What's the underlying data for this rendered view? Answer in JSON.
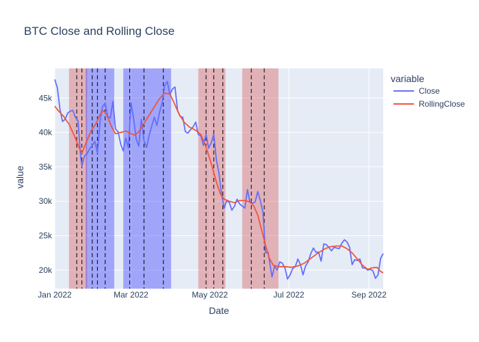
{
  "chart_data": {
    "type": "line",
    "title": "BTC Close and Rolling Close",
    "xlabel": "Date",
    "ylabel": "value",
    "legend_title": "variable",
    "legend_position": "top-right outside plot",
    "grid": true,
    "colors": {
      "plot_bg": "#e5ecf6",
      "grid": "#ffffff",
      "red_band": "#d62728",
      "blue_band": "#0000ff",
      "vline": "#000000"
    },
    "x_range": [
      "2022-01-01",
      "2022-09-12"
    ],
    "y_range": [
      17300,
      49300
    ],
    "x_ticks": [
      {
        "date": "2022-01-01",
        "label": "Jan 2022"
      },
      {
        "date": "2022-03-01",
        "label": "Mar 2022"
      },
      {
        "date": "2022-05-01",
        "label": "May 2022"
      },
      {
        "date": "2022-07-01",
        "label": "Jul 2022"
      },
      {
        "date": "2022-09-01",
        "label": "Sep 2022"
      }
    ],
    "y_ticks": [
      {
        "value": 20000,
        "label": "20k"
      },
      {
        "value": 25000,
        "label": "25k"
      },
      {
        "value": 30000,
        "label": "30k"
      },
      {
        "value": 35000,
        "label": "35k"
      },
      {
        "value": 40000,
        "label": "40k"
      },
      {
        "value": 45000,
        "label": "45k"
      }
    ],
    "bands": [
      {
        "start": "2022-01-12",
        "end": "2022-01-26",
        "color": "red"
      },
      {
        "start": "2022-01-25",
        "end": "2022-02-16",
        "color": "blue"
      },
      {
        "start": "2022-02-23",
        "end": "2022-04-01",
        "color": "blue"
      },
      {
        "start": "2022-04-22",
        "end": "2022-05-13",
        "color": "red"
      },
      {
        "start": "2022-05-26",
        "end": "2022-06-23",
        "color": "red"
      }
    ],
    "vlines": [
      "2022-01-18",
      "2022-01-22",
      "2022-01-30",
      "2022-02-03",
      "2022-02-09",
      "2022-02-28",
      "2022-03-11",
      "2022-03-26",
      "2022-04-28",
      "2022-05-04",
      "2022-05-11",
      "2022-06-02",
      "2022-06-12"
    ],
    "series": [
      {
        "name": "Close",
        "color": "#636efa",
        "points": [
          [
            "2022-01-01",
            47700
          ],
          [
            "2022-01-03",
            46500
          ],
          [
            "2022-01-05",
            43400
          ],
          [
            "2022-01-07",
            41600
          ],
          [
            "2022-01-09",
            41900
          ],
          [
            "2022-01-11",
            42800
          ],
          [
            "2022-01-13",
            43100
          ],
          [
            "2022-01-15",
            43200
          ],
          [
            "2022-01-17",
            42200
          ],
          [
            "2022-01-19",
            41700
          ],
          [
            "2022-01-21",
            36500
          ],
          [
            "2022-01-22",
            35100
          ],
          [
            "2022-01-24",
            36600
          ],
          [
            "2022-01-26",
            36900
          ],
          [
            "2022-01-28",
            37600
          ],
          [
            "2022-01-30",
            38100
          ],
          [
            "2022-02-01",
            38700
          ],
          [
            "2022-02-03",
            37000
          ],
          [
            "2022-02-05",
            41600
          ],
          [
            "2022-02-07",
            43800
          ],
          [
            "2022-02-09",
            44200
          ],
          [
            "2022-02-11",
            42300
          ],
          [
            "2022-02-13",
            42100
          ],
          [
            "2022-02-15",
            44500
          ],
          [
            "2022-02-17",
            40500
          ],
          [
            "2022-02-19",
            40100
          ],
          [
            "2022-02-21",
            38300
          ],
          [
            "2022-02-23",
            37300
          ],
          [
            "2022-02-25",
            39200
          ],
          [
            "2022-02-27",
            37700
          ],
          [
            "2022-03-01",
            44300
          ],
          [
            "2022-03-03",
            42000
          ],
          [
            "2022-03-05",
            39000
          ],
          [
            "2022-03-07",
            38000
          ],
          [
            "2022-03-09",
            41900
          ],
          [
            "2022-03-11",
            38800
          ],
          [
            "2022-03-13",
            37800
          ],
          [
            "2022-03-15",
            39600
          ],
          [
            "2022-03-17",
            40900
          ],
          [
            "2022-03-19",
            42200
          ],
          [
            "2022-03-21",
            41000
          ],
          [
            "2022-03-23",
            42900
          ],
          [
            "2022-03-25",
            44300
          ],
          [
            "2022-03-27",
            46800
          ],
          [
            "2022-03-29",
            47400
          ],
          [
            "2022-03-31",
            45500
          ],
          [
            "2022-04-02",
            46300
          ],
          [
            "2022-04-04",
            46600
          ],
          [
            "2022-04-06",
            43200
          ],
          [
            "2022-04-08",
            42300
          ],
          [
            "2022-04-10",
            42200
          ],
          [
            "2022-04-12",
            40100
          ],
          [
            "2022-04-14",
            39900
          ],
          [
            "2022-04-16",
            40400
          ],
          [
            "2022-04-18",
            40800
          ],
          [
            "2022-04-20",
            41500
          ],
          [
            "2022-04-22",
            39700
          ],
          [
            "2022-04-24",
            39500
          ],
          [
            "2022-04-26",
            38100
          ],
          [
            "2022-04-28",
            39700
          ],
          [
            "2022-04-30",
            37700
          ],
          [
            "2022-05-02",
            38500
          ],
          [
            "2022-05-04",
            39700
          ],
          [
            "2022-05-06",
            36000
          ],
          [
            "2022-05-08",
            34100
          ],
          [
            "2022-05-10",
            31000
          ],
          [
            "2022-05-12",
            29000
          ],
          [
            "2022-05-14",
            30100
          ],
          [
            "2022-05-16",
            29800
          ],
          [
            "2022-05-18",
            28700
          ],
          [
            "2022-05-20",
            29300
          ],
          [
            "2022-05-22",
            30300
          ],
          [
            "2022-05-24",
            29600
          ],
          [
            "2022-05-26",
            29300
          ],
          [
            "2022-05-28",
            29000
          ],
          [
            "2022-05-30",
            31700
          ],
          [
            "2022-06-01",
            29800
          ],
          [
            "2022-06-03",
            29700
          ],
          [
            "2022-06-05",
            29900
          ],
          [
            "2022-06-07",
            31400
          ],
          [
            "2022-06-09",
            30100
          ],
          [
            "2022-06-11",
            28400
          ],
          [
            "2022-06-13",
            22500
          ],
          [
            "2022-06-15",
            22600
          ],
          [
            "2022-06-18",
            19000
          ],
          [
            "2022-06-20",
            20600
          ],
          [
            "2022-06-22",
            20000
          ],
          [
            "2022-06-24",
            21200
          ],
          [
            "2022-06-26",
            21000
          ],
          [
            "2022-06-28",
            20300
          ],
          [
            "2022-06-30",
            18700
          ],
          [
            "2022-07-02",
            19300
          ],
          [
            "2022-07-04",
            20200
          ],
          [
            "2022-07-06",
            20500
          ],
          [
            "2022-07-08",
            21600
          ],
          [
            "2022-07-10",
            20800
          ],
          [
            "2022-07-12",
            19300
          ],
          [
            "2022-07-14",
            20600
          ],
          [
            "2022-07-16",
            21200
          ],
          [
            "2022-07-18",
            22400
          ],
          [
            "2022-07-20",
            23200
          ],
          [
            "2022-07-22",
            22600
          ],
          [
            "2022-07-24",
            22600
          ],
          [
            "2022-07-26",
            21300
          ],
          [
            "2022-07-28",
            23800
          ],
          [
            "2022-07-30",
            23700
          ],
          [
            "2022-08-01",
            23300
          ],
          [
            "2022-08-03",
            22800
          ],
          [
            "2022-08-05",
            23300
          ],
          [
            "2022-08-07",
            23200
          ],
          [
            "2022-08-09",
            23100
          ],
          [
            "2022-08-11",
            23900
          ],
          [
            "2022-08-13",
            24400
          ],
          [
            "2022-08-15",
            24100
          ],
          [
            "2022-08-17",
            23300
          ],
          [
            "2022-08-19",
            20800
          ],
          [
            "2022-08-21",
            21500
          ],
          [
            "2022-08-23",
            21400
          ],
          [
            "2022-08-25",
            21600
          ],
          [
            "2022-08-27",
            20300
          ],
          [
            "2022-08-29",
            20300
          ],
          [
            "2022-08-31",
            20000
          ],
          [
            "2022-09-02",
            20100
          ],
          [
            "2022-09-04",
            19900
          ],
          [
            "2022-09-06",
            18800
          ],
          [
            "2022-09-08",
            19300
          ],
          [
            "2022-09-10",
            21700
          ],
          [
            "2022-09-12",
            22400
          ]
        ]
      },
      {
        "name": "RollingClose",
        "color": "#ef553b",
        "points": [
          [
            "2022-01-01",
            43800
          ],
          [
            "2022-01-04",
            43100
          ],
          [
            "2022-01-08",
            42300
          ],
          [
            "2022-01-12",
            41200
          ],
          [
            "2022-01-16",
            39600
          ],
          [
            "2022-01-20",
            37700
          ],
          [
            "2022-01-22",
            37000
          ],
          [
            "2022-01-25",
            38400
          ],
          [
            "2022-01-29",
            40200
          ],
          [
            "2022-02-02",
            41300
          ],
          [
            "2022-02-05",
            42600
          ],
          [
            "2022-02-08",
            43200
          ],
          [
            "2022-02-11",
            42200
          ],
          [
            "2022-02-14",
            40800
          ],
          [
            "2022-02-17",
            39800
          ],
          [
            "2022-02-21",
            40000
          ],
          [
            "2022-02-25",
            40200
          ],
          [
            "2022-03-01",
            39800
          ],
          [
            "2022-03-04",
            39600
          ],
          [
            "2022-03-07",
            40100
          ],
          [
            "2022-03-11",
            41300
          ],
          [
            "2022-03-15",
            42500
          ],
          [
            "2022-03-19",
            43700
          ],
          [
            "2022-03-23",
            44900
          ],
          [
            "2022-03-27",
            45700
          ],
          [
            "2022-03-31",
            45600
          ],
          [
            "2022-04-03",
            44400
          ],
          [
            "2022-04-07",
            42700
          ],
          [
            "2022-04-11",
            41500
          ],
          [
            "2022-04-15",
            40800
          ],
          [
            "2022-04-20",
            40300
          ],
          [
            "2022-04-24",
            39700
          ],
          [
            "2022-04-27",
            38400
          ],
          [
            "2022-04-30",
            36700
          ],
          [
            "2022-05-03",
            34800
          ],
          [
            "2022-05-06",
            32800
          ],
          [
            "2022-05-09",
            31100
          ],
          [
            "2022-05-12",
            30300
          ],
          [
            "2022-05-16",
            30000
          ],
          [
            "2022-05-20",
            29800
          ],
          [
            "2022-05-24",
            30100
          ],
          [
            "2022-05-28",
            30100
          ],
          [
            "2022-06-01",
            29900
          ],
          [
            "2022-06-04",
            29300
          ],
          [
            "2022-06-07",
            28000
          ],
          [
            "2022-06-10",
            25800
          ],
          [
            "2022-06-13",
            23600
          ],
          [
            "2022-06-16",
            21700
          ],
          [
            "2022-06-19",
            20700
          ],
          [
            "2022-06-23",
            20500
          ],
          [
            "2022-06-28",
            20500
          ],
          [
            "2022-07-03",
            20400
          ],
          [
            "2022-07-08",
            20600
          ],
          [
            "2022-07-13",
            21000
          ],
          [
            "2022-07-18",
            21700
          ],
          [
            "2022-07-23",
            22400
          ],
          [
            "2022-07-28",
            23000
          ],
          [
            "2022-08-02",
            23400
          ],
          [
            "2022-08-07",
            23500
          ],
          [
            "2022-08-11",
            23500
          ],
          [
            "2022-08-15",
            23100
          ],
          [
            "2022-08-19",
            22500
          ],
          [
            "2022-08-23",
            21600
          ],
          [
            "2022-08-27",
            20700
          ],
          [
            "2022-08-31",
            20100
          ],
          [
            "2022-09-03",
            20300
          ],
          [
            "2022-09-07",
            20400
          ],
          [
            "2022-09-10",
            19800
          ],
          [
            "2022-09-12",
            19600
          ]
        ]
      }
    ]
  }
}
